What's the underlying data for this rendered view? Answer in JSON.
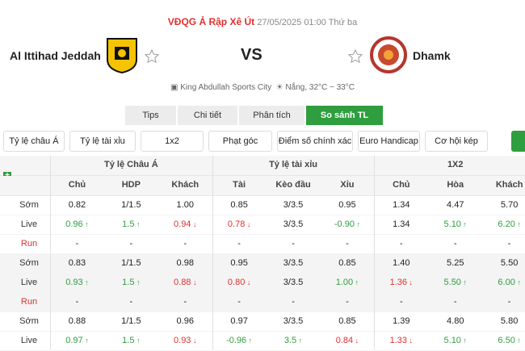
{
  "header": {
    "league": "VĐQG Ả Rập Xê Út",
    "datetime": "27/05/2025 01:00 Thứ ba",
    "home_team": "Al Ittihad Jeddah",
    "vs": "VS",
    "away_team": "Dhamk",
    "venue": "King Abdullah Sports City",
    "weather": "Nắng, 32°C ~ 33°C"
  },
  "tabs": [
    "Tips",
    "Chi tiết",
    "Phân tích",
    "So sánh TL"
  ],
  "active_tab": "So sánh TL",
  "filters": [
    "Tỷ lệ châu Á",
    "Tỷ lệ tài xỉu",
    "1x2",
    "Phạt góc",
    "Điểm số chính xác",
    "Euro Handicap",
    "Cơ hội kép"
  ],
  "table": {
    "groups": [
      "Tỷ lệ Châu Á",
      "Tỷ lệ tài xỉu",
      "1X2"
    ],
    "columns": [
      "Chủ",
      "HDP",
      "Khách",
      "Tài",
      "Kèo đầu",
      "Xỉu",
      "Chủ",
      "Hòa",
      "Khách"
    ],
    "row_groups": [
      {
        "rows": [
          {
            "label": "Sớm",
            "cells": [
              "0.82",
              "1/1.5",
              "1.00",
              "0.85",
              "3/3.5",
              "0.95",
              "1.34",
              "4.47",
              "5.70"
            ]
          },
          {
            "label": "Live",
            "cells": [
              {
                "text": "0.96",
                "trend": "up"
              },
              {
                "text": "1.5",
                "trend": "up"
              },
              {
                "text": "0.94",
                "trend": "down"
              },
              {
                "text": "0.78",
                "trend": "down"
              },
              "3/3.5",
              {
                "text": "-0.90",
                "trend": "up"
              },
              "1.34",
              {
                "text": "5.10",
                "trend": "up"
              },
              {
                "text": "6.20",
                "trend": "up"
              }
            ]
          },
          {
            "label": "Run",
            "cells": [
              "-",
              "-",
              "-",
              "-",
              "-",
              "-",
              "-",
              "-",
              "-"
            ]
          }
        ]
      },
      {
        "rows": [
          {
            "label": "Sớm",
            "cells": [
              "0.83",
              "1/1.5",
              "0.98",
              "0.95",
              "3/3.5",
              "0.85",
              "1.40",
              "5.25",
              "5.50"
            ]
          },
          {
            "label": "Live",
            "cells": [
              {
                "text": "0.93",
                "trend": "up"
              },
              {
                "text": "1.5",
                "trend": "up"
              },
              {
                "text": "0.88",
                "trend": "down"
              },
              {
                "text": "0.80",
                "trend": "down"
              },
              "3/3.5",
              {
                "text": "1.00",
                "trend": "up"
              },
              {
                "text": "1.36",
                "trend": "down"
              },
              {
                "text": "5.50",
                "trend": "up"
              },
              {
                "text": "6.00",
                "trend": "up"
              }
            ]
          },
          {
            "label": "Run",
            "cells": [
              "-",
              "-",
              "-",
              "-",
              "-",
              "-",
              "-",
              "-",
              "-"
            ]
          }
        ]
      },
      {
        "rows": [
          {
            "label": "Sớm",
            "cells": [
              "0.88",
              "1/1.5",
              "0.96",
              "0.97",
              "3/3.5",
              "0.85",
              "1.39",
              "4.80",
              "5.80"
            ]
          },
          {
            "label": "Live",
            "cells": [
              {
                "text": "0.97",
                "trend": "up"
              },
              {
                "text": "1.5",
                "trend": "up"
              },
              {
                "text": "0.93",
                "trend": "down"
              },
              {
                "text": "-0.96",
                "trend": "up"
              },
              {
                "text": "3.5",
                "trend": "up"
              },
              {
                "text": "0.84",
                "trend": "down"
              },
              {
                "text": "1.33",
                "trend": "down"
              },
              {
                "text": "5.10",
                "trend": "up"
              },
              {
                "text": "6.50",
                "trend": "up"
              }
            ]
          }
        ]
      }
    ]
  }
}
